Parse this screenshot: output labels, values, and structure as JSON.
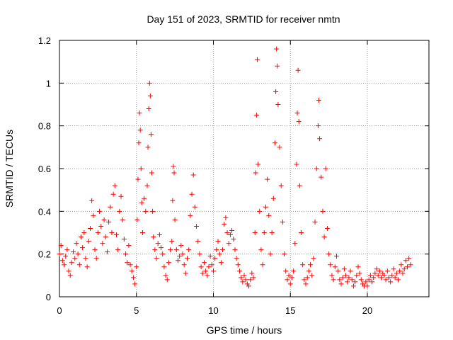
{
  "chart_data": {
    "type": "scatter",
    "title": "Day 151 of 2023, SRMTID for receiver nmtn",
    "xlabel": "GPS time / hours",
    "ylabel": "SRMTID / TECUs",
    "xlim": [
      0,
      24
    ],
    "ylim": [
      0,
      1.2
    ],
    "x_ticks": [
      0,
      5,
      10,
      15,
      20
    ],
    "x_tick_labels": [
      "0",
      "5",
      "10",
      "15",
      "20"
    ],
    "y_ticks": [
      0,
      0.2,
      0.4,
      0.6,
      0.8,
      1.0,
      1.2
    ],
    "y_tick_labels": [
      "0",
      "0.2",
      "0.4",
      "0.6",
      "0.8",
      "1",
      "1.2"
    ],
    "grid": true,
    "marker": "plus",
    "series": [
      {
        "name": "SRMTID",
        "color": "#ff0000",
        "points": [
          [
            0.0,
            0.2
          ],
          [
            0.1,
            0.24
          ],
          [
            0.2,
            0.17
          ],
          [
            0.3,
            0.15
          ],
          [
            0.4,
            0.19
          ],
          [
            0.5,
            0.22
          ],
          [
            0.6,
            0.12
          ],
          [
            0.7,
            0.1
          ],
          [
            0.8,
            0.16
          ],
          [
            0.9,
            0.21
          ],
          [
            1.0,
            0.18
          ],
          [
            1.1,
            0.25
          ],
          [
            1.2,
            0.2
          ],
          [
            1.3,
            0.15
          ],
          [
            1.4,
            0.28
          ],
          [
            1.5,
            0.23
          ],
          [
            1.6,
            0.3
          ],
          [
            1.7,
            0.18
          ],
          [
            1.8,
            0.14
          ],
          [
            1.9,
            0.26
          ],
          [
            2.0,
            0.32
          ],
          [
            2.1,
            0.45
          ],
          [
            2.2,
            0.38
          ],
          [
            2.3,
            0.22
          ],
          [
            2.4,
            0.18
          ],
          [
            2.5,
            0.3
          ],
          [
            2.6,
            0.4
          ],
          [
            2.7,
            0.33
          ],
          [
            2.8,
            0.25
          ],
          [
            2.9,
            0.36
          ],
          [
            3.0,
            0.28
          ],
          [
            3.1,
            0.21
          ],
          [
            3.2,
            0.35
          ],
          [
            3.3,
            0.42
          ],
          [
            3.4,
            0.3
          ],
          [
            3.5,
            0.48
          ],
          [
            3.6,
            0.52
          ],
          [
            3.7,
            0.29
          ],
          [
            3.8,
            0.22
          ],
          [
            3.9,
            0.4
          ],
          [
            4.0,
            0.47
          ],
          [
            4.1,
            0.36
          ],
          [
            4.2,
            0.27
          ],
          [
            4.3,
            0.2
          ],
          [
            4.4,
            0.16
          ],
          [
            4.5,
            0.24
          ],
          [
            4.6,
            0.15
          ],
          [
            4.7,
            0.12
          ],
          [
            4.8,
            0.09
          ],
          [
            4.9,
            0.06
          ],
          [
            5.0,
            0.14
          ],
          [
            5.05,
            0.36
          ],
          [
            5.1,
            0.55
          ],
          [
            5.15,
            0.72
          ],
          [
            5.2,
            0.86
          ],
          [
            5.25,
            0.78
          ],
          [
            5.3,
            0.6
          ],
          [
            5.35,
            0.44
          ],
          [
            5.4,
            0.3
          ],
          [
            5.5,
            0.46
          ],
          [
            5.6,
            0.4
          ],
          [
            5.7,
            0.52
          ],
          [
            5.75,
            0.7
          ],
          [
            5.8,
            0.88
          ],
          [
            5.85,
            1.0
          ],
          [
            5.9,
            0.94
          ],
          [
            5.95,
            0.76
          ],
          [
            6.0,
            0.58
          ],
          [
            6.05,
            0.4
          ],
          [
            6.1,
            0.28
          ],
          [
            6.2,
            0.22
          ],
          [
            6.3,
            0.18
          ],
          [
            6.4,
            0.25
          ],
          [
            6.5,
            0.29
          ],
          [
            6.6,
            0.23
          ],
          [
            6.7,
            0.2
          ],
          [
            6.8,
            0.14
          ],
          [
            6.9,
            0.1
          ],
          [
            7.0,
            0.08
          ],
          [
            7.1,
            0.16
          ],
          [
            7.2,
            0.22
          ],
          [
            7.3,
            0.26
          ],
          [
            7.35,
            0.45
          ],
          [
            7.4,
            0.61
          ],
          [
            7.45,
            0.58
          ],
          [
            7.5,
            0.36
          ],
          [
            7.6,
            0.22
          ],
          [
            7.7,
            0.17
          ],
          [
            7.8,
            0.19
          ],
          [
            7.9,
            0.24
          ],
          [
            8.0,
            0.2
          ],
          [
            8.1,
            0.15
          ],
          [
            8.2,
            0.11
          ],
          [
            8.3,
            0.18
          ],
          [
            8.4,
            0.22
          ],
          [
            8.5,
            0.38
          ],
          [
            8.6,
            0.48
          ],
          [
            8.7,
            0.57
          ],
          [
            8.8,
            0.42
          ],
          [
            8.9,
            0.33
          ],
          [
            9.0,
            0.26
          ],
          [
            9.1,
            0.2
          ],
          [
            9.2,
            0.14
          ],
          [
            9.3,
            0.11
          ],
          [
            9.4,
            0.16
          ],
          [
            9.5,
            0.12
          ],
          [
            9.6,
            0.1
          ],
          [
            9.7,
            0.14
          ],
          [
            9.8,
            0.19
          ],
          [
            9.9,
            0.15
          ],
          [
            10.0,
            0.12
          ],
          [
            10.1,
            0.18
          ],
          [
            10.2,
            0.22
          ],
          [
            10.3,
            0.26
          ],
          [
            10.4,
            0.2
          ],
          [
            10.5,
            0.16
          ],
          [
            10.6,
            0.22
          ],
          [
            10.7,
            0.34
          ],
          [
            10.8,
            0.37
          ],
          [
            10.9,
            0.3
          ],
          [
            11.0,
            0.25
          ],
          [
            11.1,
            0.29
          ],
          [
            11.2,
            0.31
          ],
          [
            11.3,
            0.27
          ],
          [
            11.4,
            0.22
          ],
          [
            11.5,
            0.18
          ],
          [
            11.6,
            0.15
          ],
          [
            11.7,
            0.12
          ],
          [
            11.8,
            0.09
          ],
          [
            11.9,
            0.07
          ],
          [
            12.0,
            0.1
          ],
          [
            12.1,
            0.08
          ],
          [
            12.2,
            0.06
          ],
          [
            12.3,
            0.05
          ],
          [
            12.4,
            0.08
          ],
          [
            12.5,
            0.11
          ],
          [
            12.6,
            0.09
          ],
          [
            12.7,
            0.3
          ],
          [
            12.75,
            0.58
          ],
          [
            12.8,
            0.85
          ],
          [
            12.85,
            1.11
          ],
          [
            12.9,
            0.62
          ],
          [
            13.0,
            0.4
          ],
          [
            13.1,
            0.22
          ],
          [
            13.2,
            0.15
          ],
          [
            13.3,
            0.3
          ],
          [
            13.4,
            0.42
          ],
          [
            13.5,
            0.55
          ],
          [
            13.6,
            0.38
          ],
          [
            13.7,
            0.2
          ],
          [
            13.8,
            0.3
          ],
          [
            13.9,
            0.46
          ],
          [
            14.0,
            0.72
          ],
          [
            14.05,
            0.96
          ],
          [
            14.1,
            1.16
          ],
          [
            14.15,
            1.08
          ],
          [
            14.2,
            0.9
          ],
          [
            14.3,
            0.7
          ],
          [
            14.4,
            0.52
          ],
          [
            14.5,
            0.35
          ],
          [
            14.6,
            0.2
          ],
          [
            14.7,
            0.12
          ],
          [
            14.8,
            0.08
          ],
          [
            14.9,
            0.1
          ],
          [
            15.0,
            0.06
          ],
          [
            15.1,
            0.09
          ],
          [
            15.2,
            0.12
          ],
          [
            15.3,
            0.25
          ],
          [
            15.4,
            0.62
          ],
          [
            15.45,
            0.86
          ],
          [
            15.5,
            1.06
          ],
          [
            15.55,
            0.82
          ],
          [
            15.6,
            0.52
          ],
          [
            15.7,
            0.3
          ],
          [
            15.8,
            0.15
          ],
          [
            15.9,
            0.08
          ],
          [
            16.0,
            0.06
          ],
          [
            16.1,
            0.09
          ],
          [
            16.2,
            0.12
          ],
          [
            16.3,
            0.15
          ],
          [
            16.4,
            0.1
          ],
          [
            16.5,
            0.18
          ],
          [
            16.6,
            0.35
          ],
          [
            16.7,
            0.6
          ],
          [
            16.8,
            0.8
          ],
          [
            16.85,
            0.92
          ],
          [
            16.9,
            0.74
          ],
          [
            17.0,
            0.56
          ],
          [
            17.1,
            0.4
          ],
          [
            17.2,
            0.28
          ],
          [
            17.3,
            0.6
          ],
          [
            17.4,
            0.32
          ],
          [
            17.5,
            0.2
          ],
          [
            17.6,
            0.15
          ],
          [
            17.7,
            0.1
          ],
          [
            17.8,
            0.08
          ],
          [
            17.9,
            0.14
          ],
          [
            18.0,
            0.19
          ],
          [
            18.1,
            0.12
          ],
          [
            18.2,
            0.08
          ],
          [
            18.3,
            0.06
          ],
          [
            18.4,
            0.09
          ],
          [
            18.5,
            0.13
          ],
          [
            18.6,
            0.1
          ],
          [
            18.7,
            0.07
          ],
          [
            18.8,
            0.09
          ],
          [
            18.9,
            0.12
          ],
          [
            19.0,
            0.08
          ],
          [
            19.1,
            0.05
          ],
          [
            19.2,
            0.07
          ],
          [
            19.3,
            0.1
          ],
          [
            19.4,
            0.14
          ],
          [
            19.5,
            0.11
          ],
          [
            19.6,
            0.08
          ],
          [
            19.7,
            0.06
          ],
          [
            19.8,
            0.05
          ],
          [
            19.9,
            0.07
          ],
          [
            20.0,
            0.05
          ],
          [
            20.1,
            0.08
          ],
          [
            20.2,
            0.1
          ],
          [
            20.3,
            0.07
          ],
          [
            20.4,
            0.09
          ],
          [
            20.5,
            0.11
          ],
          [
            20.6,
            0.13
          ],
          [
            20.7,
            0.1
          ],
          [
            20.8,
            0.12
          ],
          [
            20.9,
            0.09
          ],
          [
            21.0,
            0.11
          ],
          [
            21.1,
            0.1
          ],
          [
            21.2,
            0.08
          ],
          [
            21.3,
            0.12
          ],
          [
            21.4,
            0.09
          ],
          [
            21.5,
            0.07
          ],
          [
            21.6,
            0.1
          ],
          [
            21.7,
            0.13
          ],
          [
            21.8,
            0.09
          ],
          [
            21.9,
            0.11
          ],
          [
            22.0,
            0.08
          ],
          [
            22.1,
            0.12
          ],
          [
            22.2,
            0.15
          ],
          [
            22.3,
            0.11
          ],
          [
            22.4,
            0.13
          ],
          [
            22.5,
            0.17
          ],
          [
            22.6,
            0.14
          ],
          [
            22.7,
            0.18
          ],
          [
            22.8,
            0.15
          ]
        ]
      }
    ]
  }
}
